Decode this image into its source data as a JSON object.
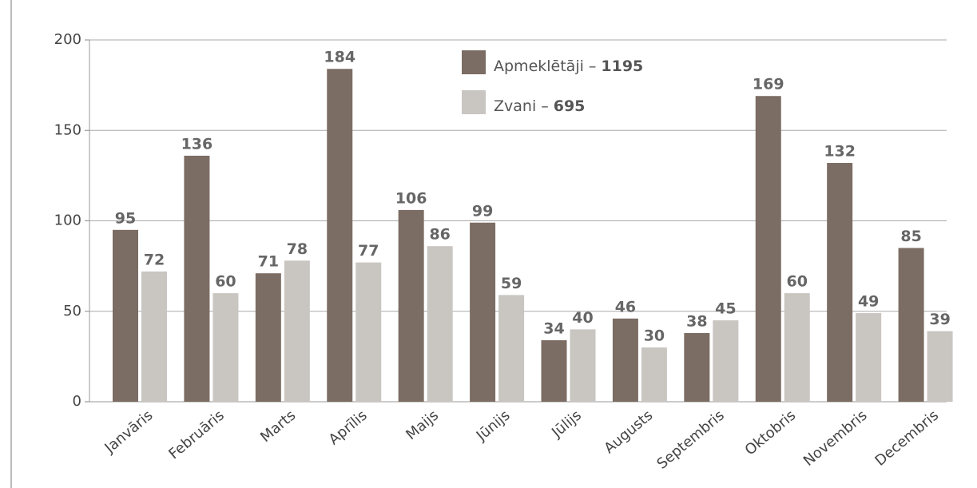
{
  "chart_data": {
    "type": "bar",
    "categories": [
      "Janvāris",
      "Februāris",
      "Marts",
      "Aprīlis",
      "Maijs",
      "Jūnijs",
      "Jūlijs",
      "Augusts",
      "Septembris",
      "Oktobris",
      "Novembris",
      "Decembris"
    ],
    "series": [
      {
        "name": "Apmeklētāji",
        "total": 1195,
        "color": "#7b6d64",
        "values": [
          95,
          136,
          71,
          184,
          106,
          99,
          34,
          46,
          38,
          169,
          132,
          85
        ]
      },
      {
        "name": "Zvani",
        "total": 695,
        "color": "#c9c5c1",
        "values": [
          72,
          60,
          78,
          77,
          86,
          59,
          40,
          30,
          45,
          60,
          49,
          39
        ]
      }
    ],
    "legend_separator": "–",
    "ylim": [
      0,
      200
    ],
    "yticks": [
      0,
      50,
      100,
      150,
      200
    ],
    "grid": true
  }
}
